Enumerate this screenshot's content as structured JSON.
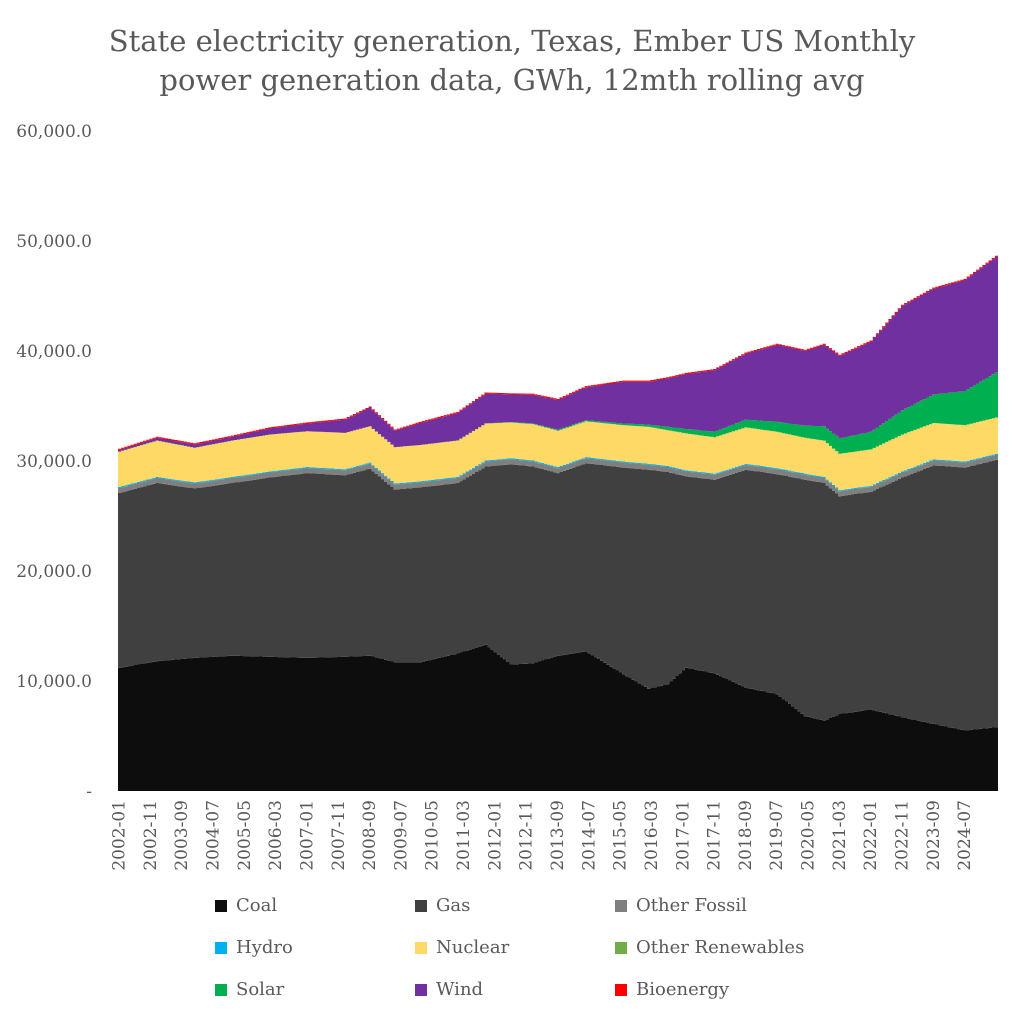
{
  "chart_data": {
    "type": "area",
    "title": "State electricity generation, Texas, Ember US Monthly power generation data, GWh, 12mth rolling avg",
    "title_lines": [
      "State electricity generation, Texas, Ember US Monthly",
      "power generation data, GWh, 12mth rolling avg"
    ],
    "y_tick_labels": [
      "-",
      "10,000.0",
      "20,000.0",
      "30,000.0",
      "40,000.0",
      "50,000.0",
      "60,000.0"
    ],
    "ylim": [
      0,
      60000
    ],
    "x_tick_labels": [
      "2002-01",
      "2002-11",
      "2003-09",
      "2004-07",
      "2005-05",
      "2006-03",
      "2007-01",
      "2007-11",
      "2008-09",
      "2009-07",
      "2010-05",
      "2011-03",
      "2012-01",
      "2012-11",
      "2013-09",
      "2014-07",
      "2015-05",
      "2016-03",
      "2017-01",
      "2017-11",
      "2018-09",
      "2019-07",
      "2020-05",
      "2021-03",
      "2022-01",
      "2022-11",
      "2023-09",
      "2024-07"
    ],
    "x_start": "2002-01",
    "x_end": "2025-05",
    "stacking": "stacked",
    "legend_position": "bottom",
    "anchor_dates": [
      "2002-01",
      "2003-01",
      "2004-01",
      "2005-01",
      "2006-01",
      "2007-01",
      "2008-01",
      "2008-09",
      "2009-05",
      "2010-01",
      "2011-01",
      "2011-10",
      "2012-06",
      "2013-01",
      "2013-09",
      "2014-06",
      "2015-06",
      "2016-02",
      "2016-08",
      "2017-02",
      "2017-11",
      "2018-09",
      "2019-07",
      "2020-04",
      "2020-10",
      "2021-03",
      "2022-01",
      "2022-11",
      "2023-09",
      "2024-07",
      "2025-05"
    ],
    "series": [
      {
        "name": "Coal",
        "color": "#0d0d0d",
        "values": [
          11200,
          11800,
          12100,
          12300,
          12200,
          12100,
          12200,
          12300,
          11700,
          11700,
          12500,
          13300,
          11500,
          11600,
          12300,
          12700,
          10600,
          9300,
          9700,
          11200,
          10700,
          9400,
          8800,
          6800,
          6400,
          7000,
          7400,
          6700,
          6100,
          5500,
          5800
        ]
      },
      {
        "name": "Gas",
        "color": "#404040",
        "values": [
          15900,
          16200,
          15400,
          15700,
          16300,
          16800,
          16500,
          17000,
          15700,
          15900,
          15500,
          16200,
          18200,
          17900,
          16600,
          17100,
          18800,
          19900,
          19300,
          17400,
          17600,
          19800,
          20000,
          21500,
          21600,
          19800,
          19800,
          21800,
          23500,
          23900,
          24300
        ]
      },
      {
        "name": "Other Fossil",
        "color": "#7f7f7f",
        "values": [
          450,
          450,
          450,
          450,
          450,
          450,
          450,
          450,
          450,
          450,
          450,
          450,
          450,
          450,
          450,
          450,
          450,
          450,
          450,
          450,
          450,
          450,
          450,
          450,
          450,
          450,
          450,
          450,
          450,
          450,
          450
        ]
      },
      {
        "name": "Hydro",
        "color": "#00b0f0",
        "values": [
          100,
          100,
          100,
          100,
          100,
          100,
          100,
          100,
          100,
          100,
          100,
          100,
          100,
          100,
          100,
          100,
          100,
          100,
          100,
          100,
          100,
          100,
          100,
          100,
          100,
          100,
          100,
          100,
          100,
          100,
          100
        ]
      },
      {
        "name": "Nuclear",
        "color": "#ffd966",
        "values": [
          3200,
          3300,
          3150,
          3300,
          3350,
          3250,
          3300,
          3300,
          3300,
          3300,
          3300,
          3350,
          3250,
          3300,
          3300,
          3250,
          3300,
          3350,
          3250,
          3350,
          3300,
          3300,
          3300,
          3250,
          3300,
          3300,
          3300,
          3350,
          3300,
          3300,
          3300
        ]
      },
      {
        "name": "Other Renewables",
        "color": "#70ad47",
        "values": [
          10,
          10,
          10,
          10,
          10,
          10,
          10,
          10,
          10,
          10,
          10,
          10,
          10,
          10,
          10,
          10,
          10,
          10,
          10,
          10,
          10,
          10,
          10,
          10,
          10,
          10,
          10,
          10,
          10,
          10,
          10
        ]
      },
      {
        "name": "Solar",
        "color": "#00b050",
        "values": [
          0,
          0,
          0,
          0,
          0,
          0,
          0,
          0,
          0,
          0,
          10,
          20,
          40,
          60,
          90,
          100,
          150,
          200,
          300,
          400,
          500,
          700,
          900,
          1100,
          1300,
          1400,
          1600,
          2200,
          2600,
          3100,
          4100
        ]
      },
      {
        "name": "Wind",
        "color": "#7030a0",
        "values": [
          150,
          250,
          300,
          350,
          550,
          700,
          1200,
          1700,
          1500,
          2000,
          2500,
          2700,
          2500,
          2600,
          2700,
          3000,
          3800,
          3900,
          4400,
          5000,
          5600,
          6000,
          7000,
          6800,
          7400,
          7500,
          8200,
          9500,
          9600,
          10100,
          10500
        ]
      },
      {
        "name": "Bioenergy",
        "color": "#ff0000",
        "values": [
          100,
          100,
          100,
          100,
          100,
          100,
          100,
          100,
          100,
          100,
          100,
          100,
          100,
          100,
          100,
          100,
          100,
          100,
          100,
          100,
          100,
          100,
          100,
          100,
          100,
          100,
          100,
          100,
          100,
          100,
          100
        ]
      }
    ]
  }
}
